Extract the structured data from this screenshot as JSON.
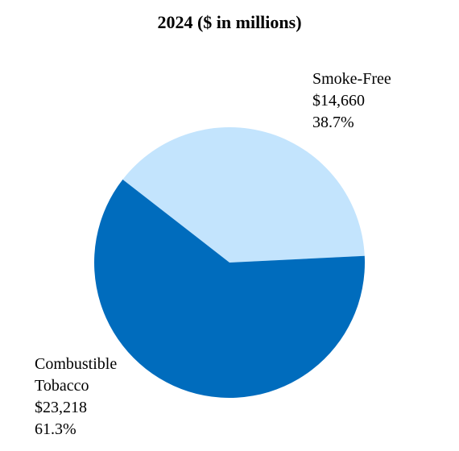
{
  "chart_data": {
    "type": "pie",
    "title": "2024 ($ in millions)",
    "slices": [
      {
        "name": "Smoke-Free",
        "value": 14660,
        "value_label": "$14,660",
        "percent_label": "38.7%",
        "color": "#c3e4fd"
      },
      {
        "name": "Combustible Tobacco",
        "name_lines": [
          "Combustible",
          "Tobacco"
        ],
        "value": 23218,
        "value_label": "$23,218",
        "percent_label": "61.3%",
        "color": "#006cbd"
      }
    ]
  }
}
